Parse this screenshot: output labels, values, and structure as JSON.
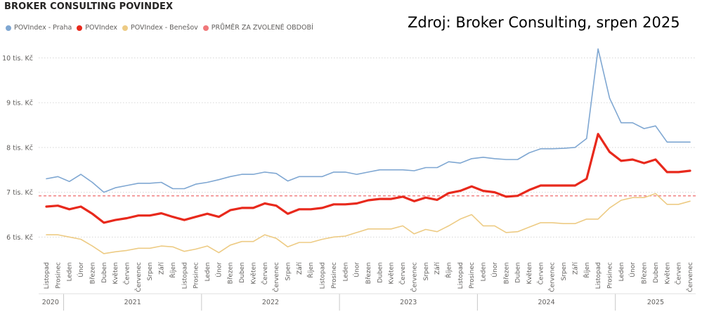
{
  "header": {
    "title": "BROKER CONSULTING POVINDEX",
    "source_note": "Zdroj: Broker Consulting, srpen 2025"
  },
  "legend": [
    {
      "label": "POVIndex - Praha",
      "color": "#7fa7d2",
      "kind": "series"
    },
    {
      "label": "POVIndex",
      "color": "#e8291c",
      "kind": "series"
    },
    {
      "label": "POVIndex - Benešov",
      "color": "#edcb84",
      "kind": "series"
    },
    {
      "label": "PRŮMĚR ZA ZVOLENÉ OBDOBÍ",
      "color": "#f0787a",
      "kind": "reference"
    }
  ],
  "chart_data": {
    "type": "line",
    "title": "BROKER CONSULTING POVINDEX",
    "x": [
      "Listopad",
      "Prosinec",
      "Leden",
      "Únor",
      "Březen",
      "Duben",
      "Květen",
      "Červen",
      "Červenec",
      "Srpen",
      "Září",
      "Říjen",
      "Listopad",
      "Prosinec",
      "Leden",
      "Únor",
      "Březen",
      "Duben",
      "Květen",
      "Červen",
      "Červenec",
      "Srpen",
      "Září",
      "Říjen",
      "Listopad",
      "Prosinec",
      "Leden",
      "Únor",
      "Březen",
      "Duben",
      "Květen",
      "Červen",
      "Červenec",
      "Srpen",
      "Září",
      "Říjen",
      "Listopad",
      "Prosinec",
      "Leden",
      "Únor",
      "Březen",
      "Duben",
      "Květen",
      "Červen",
      "Červenec",
      "Srpen",
      "Září",
      "Říjen",
      "Listopad",
      "Prosinec",
      "Leden",
      "Únor",
      "Březen",
      "Duben",
      "Květen",
      "Červen",
      "Červenec"
    ],
    "year_groups": [
      {
        "year": "2020",
        "count": 2
      },
      {
        "year": "2021",
        "count": 12
      },
      {
        "year": "2022",
        "count": 12
      },
      {
        "year": "2023",
        "count": 12
      },
      {
        "year": "2024",
        "count": 12
      },
      {
        "year": "2025",
        "count": 7
      }
    ],
    "y_unit": "tis. Kč",
    "yticks": [
      {
        "value": 6,
        "label": "6 tis. Kč"
      },
      {
        "value": 7,
        "label": "7 tis. Kč"
      },
      {
        "value": 8,
        "label": "8 tis. Kč"
      },
      {
        "value": 9,
        "label": "9 tis. Kč"
      },
      {
        "value": 10,
        "label": "10 tis. Kč"
      }
    ],
    "ylim": [
      5.55,
      10.35
    ],
    "grid": "horizontal-dotted",
    "legend_position": "top-left",
    "series": [
      {
        "name": "POVIndex - Praha",
        "color": "#7fa7d2",
        "values": [
          7.3,
          7.35,
          7.24,
          7.4,
          7.22,
          7.0,
          7.1,
          7.15,
          7.2,
          7.2,
          7.22,
          7.08,
          7.08,
          7.18,
          7.22,
          7.28,
          7.35,
          7.4,
          7.4,
          7.45,
          7.42,
          7.25,
          7.35,
          7.35,
          7.35,
          7.45,
          7.45,
          7.4,
          7.45,
          7.5,
          7.5,
          7.5,
          7.48,
          7.55,
          7.55,
          7.68,
          7.65,
          7.75,
          7.78,
          7.75,
          7.73,
          7.73,
          7.88,
          7.97,
          7.97,
          7.98,
          8.0,
          8.2,
          10.2,
          9.1,
          8.55,
          8.55,
          8.42,
          8.48,
          8.12,
          8.12,
          8.12
        ]
      },
      {
        "name": "POVIndex",
        "color": "#e8291c",
        "values": [
          6.68,
          6.7,
          6.62,
          6.68,
          6.52,
          6.32,
          6.38,
          6.42,
          6.48,
          6.48,
          6.53,
          6.45,
          6.38,
          6.45,
          6.52,
          6.45,
          6.6,
          6.65,
          6.65,
          6.75,
          6.7,
          6.52,
          6.62,
          6.62,
          6.65,
          6.73,
          6.73,
          6.75,
          6.82,
          6.85,
          6.85,
          6.9,
          6.8,
          6.88,
          6.83,
          6.98,
          7.03,
          7.13,
          7.03,
          7.0,
          6.9,
          6.92,
          7.05,
          7.15,
          7.15,
          7.15,
          7.15,
          7.3,
          8.3,
          7.9,
          7.7,
          7.73,
          7.65,
          7.73,
          7.45,
          7.45,
          7.48
        ]
      },
      {
        "name": "POVIndex - Benešov",
        "color": "#edcb84",
        "values": [
          6.05,
          6.05,
          6.0,
          5.95,
          5.8,
          5.63,
          5.67,
          5.7,
          5.75,
          5.75,
          5.8,
          5.78,
          5.68,
          5.73,
          5.8,
          5.65,
          5.82,
          5.9,
          5.9,
          6.05,
          5.97,
          5.78,
          5.88,
          5.88,
          5.95,
          6.0,
          6.02,
          6.1,
          6.18,
          6.18,
          6.18,
          6.25,
          6.07,
          6.17,
          6.12,
          6.25,
          6.4,
          6.5,
          6.25,
          6.25,
          6.1,
          6.12,
          6.22,
          6.32,
          6.32,
          6.3,
          6.3,
          6.4,
          6.4,
          6.65,
          6.82,
          6.88,
          6.88,
          6.97,
          6.73,
          6.73,
          6.8
        ]
      }
    ],
    "reference_line": {
      "label": "PRŮMĚR ZA ZVOLENÉ OBDOBÍ",
      "value": 6.92,
      "color": "#f0787a"
    }
  }
}
